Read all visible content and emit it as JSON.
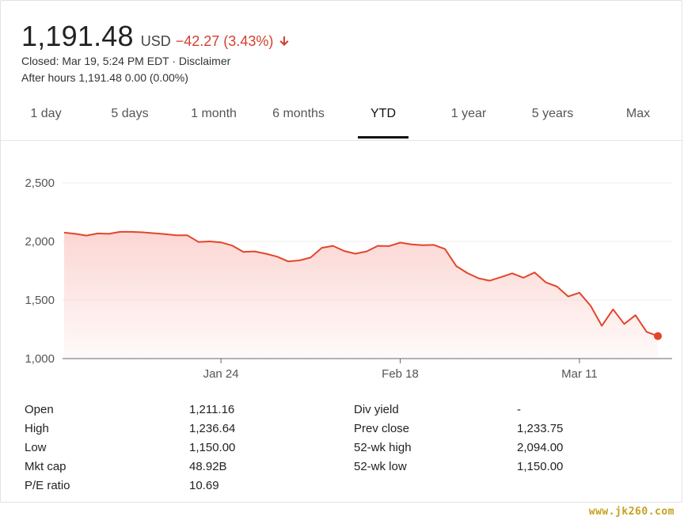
{
  "quote": {
    "price": "1,191.48",
    "currency": "USD",
    "change": "−42.27 (3.43%)",
    "change_color": "#d23f31",
    "status_line": "Closed: Mar 19, 5:24 PM EDT · Disclaimer",
    "after_hours": "After hours 1,191.48 0.00 (0.00%)"
  },
  "tabs": [
    {
      "label": "1 day",
      "active": false
    },
    {
      "label": "5 days",
      "active": false
    },
    {
      "label": "1 month",
      "active": false
    },
    {
      "label": "6 months",
      "active": false
    },
    {
      "label": "YTD",
      "active": true
    },
    {
      "label": "1 year",
      "active": false
    },
    {
      "label": "5 years",
      "active": false
    },
    {
      "label": "Max",
      "active": false
    }
  ],
  "chart_data": {
    "type": "area",
    "line_color": "#e2462b",
    "fill_color": "#fbd4d1",
    "ylim": [
      1000,
      2500
    ],
    "yticks": [
      1000,
      1500,
      2000,
      2500
    ],
    "ytick_labels": [
      "1,000",
      "1,500",
      "2,000",
      "2,500"
    ],
    "xtick_labels": [
      "Jan 24",
      "Feb 18",
      "Mar 11"
    ],
    "xtick_index": [
      14,
      30,
      46
    ],
    "grid": true,
    "values": [
      2075,
      2065,
      2050,
      2068,
      2065,
      2082,
      2082,
      2078,
      2070,
      2062,
      2052,
      2052,
      1995,
      2000,
      1992,
      1965,
      1910,
      1915,
      1895,
      1870,
      1830,
      1838,
      1862,
      1945,
      1962,
      1918,
      1895,
      1915,
      1962,
      1960,
      1990,
      1975,
      1968,
      1970,
      1935,
      1790,
      1730,
      1685,
      1665,
      1695,
      1728,
      1690,
      1735,
      1650,
      1615,
      1530,
      1562,
      1450,
      1280,
      1420,
      1295,
      1370,
      1228,
      1192
    ]
  },
  "stats": {
    "left": [
      {
        "label": "Open",
        "value": "1,211.16"
      },
      {
        "label": "High",
        "value": "1,236.64"
      },
      {
        "label": "Low",
        "value": "1,150.00"
      },
      {
        "label": "Mkt cap",
        "value": "48.92B"
      },
      {
        "label": "P/E ratio",
        "value": "10.69"
      }
    ],
    "right": [
      {
        "label": "Div yield",
        "value": "-"
      },
      {
        "label": "Prev close",
        "value": "1,233.75"
      },
      {
        "label": "52-wk high",
        "value": "2,094.00"
      },
      {
        "label": "52-wk low",
        "value": "1,150.00"
      }
    ]
  },
  "watermark": "www.jk260.com",
  "icons": {
    "change_arrow": "arrow-down-icon"
  }
}
